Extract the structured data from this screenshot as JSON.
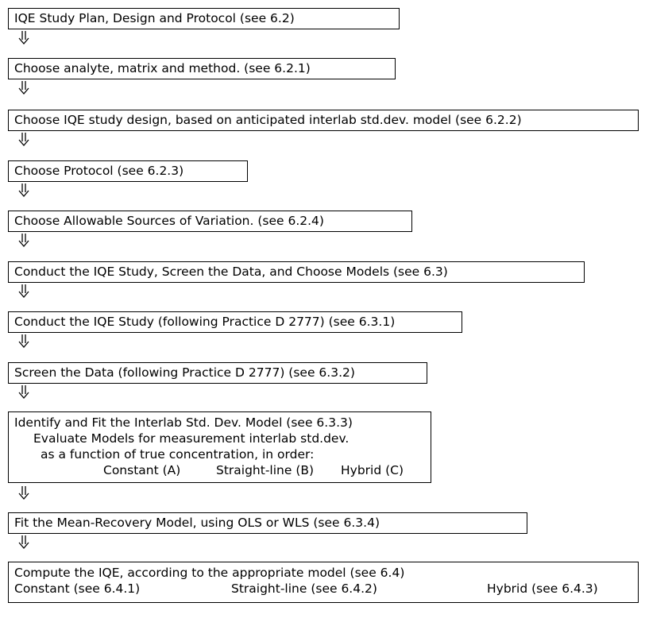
{
  "steps": [
    {
      "text": "IQE Study Plan, Design and Protocol (see 6.2)"
    },
    {
      "text": "Choose analyte, matrix and method. (see 6.2.1)"
    },
    {
      "text": "Choose IQE study design, based on anticipated interlab std.dev. model (see 6.2.2)"
    },
    {
      "text": "Choose Protocol (see 6.2.3)"
    },
    {
      "text": "Choose Allowable Sources of Variation. (see 6.2.4)"
    },
    {
      "text": "Conduct the IQE Study, Screen the Data, and Choose Models (see 6.3)"
    },
    {
      "text": "Conduct the IQE Study (following Practice D 2777) (see 6.3.1)"
    },
    {
      "text": "Screen the Data (following Practice D 2777) (see 6.3.2)"
    }
  ],
  "identify": {
    "line1": "Identify and Fit the Interlab Std. Dev. Model (see 6.3.3)",
    "line2": "Evaluate Models for measurement interlab std.dev.",
    "line3": "as a function of true concentration, in order:",
    "opt_a": "Constant (A)",
    "opt_b": "Straight-line (B)",
    "opt_c": "Hybrid (C)"
  },
  "fit": {
    "text": "Fit the Mean-Recovery Model, using OLS or WLS (see 6.3.4)"
  },
  "compute": {
    "line1": "Compute the IQE, according to the appropriate model (see 6.4)",
    "opt1": "Constant (see 6.4.1)",
    "opt2": "Straight-line (see 6.4.2)",
    "opt3": "Hybrid (see 6.4.3)"
  }
}
